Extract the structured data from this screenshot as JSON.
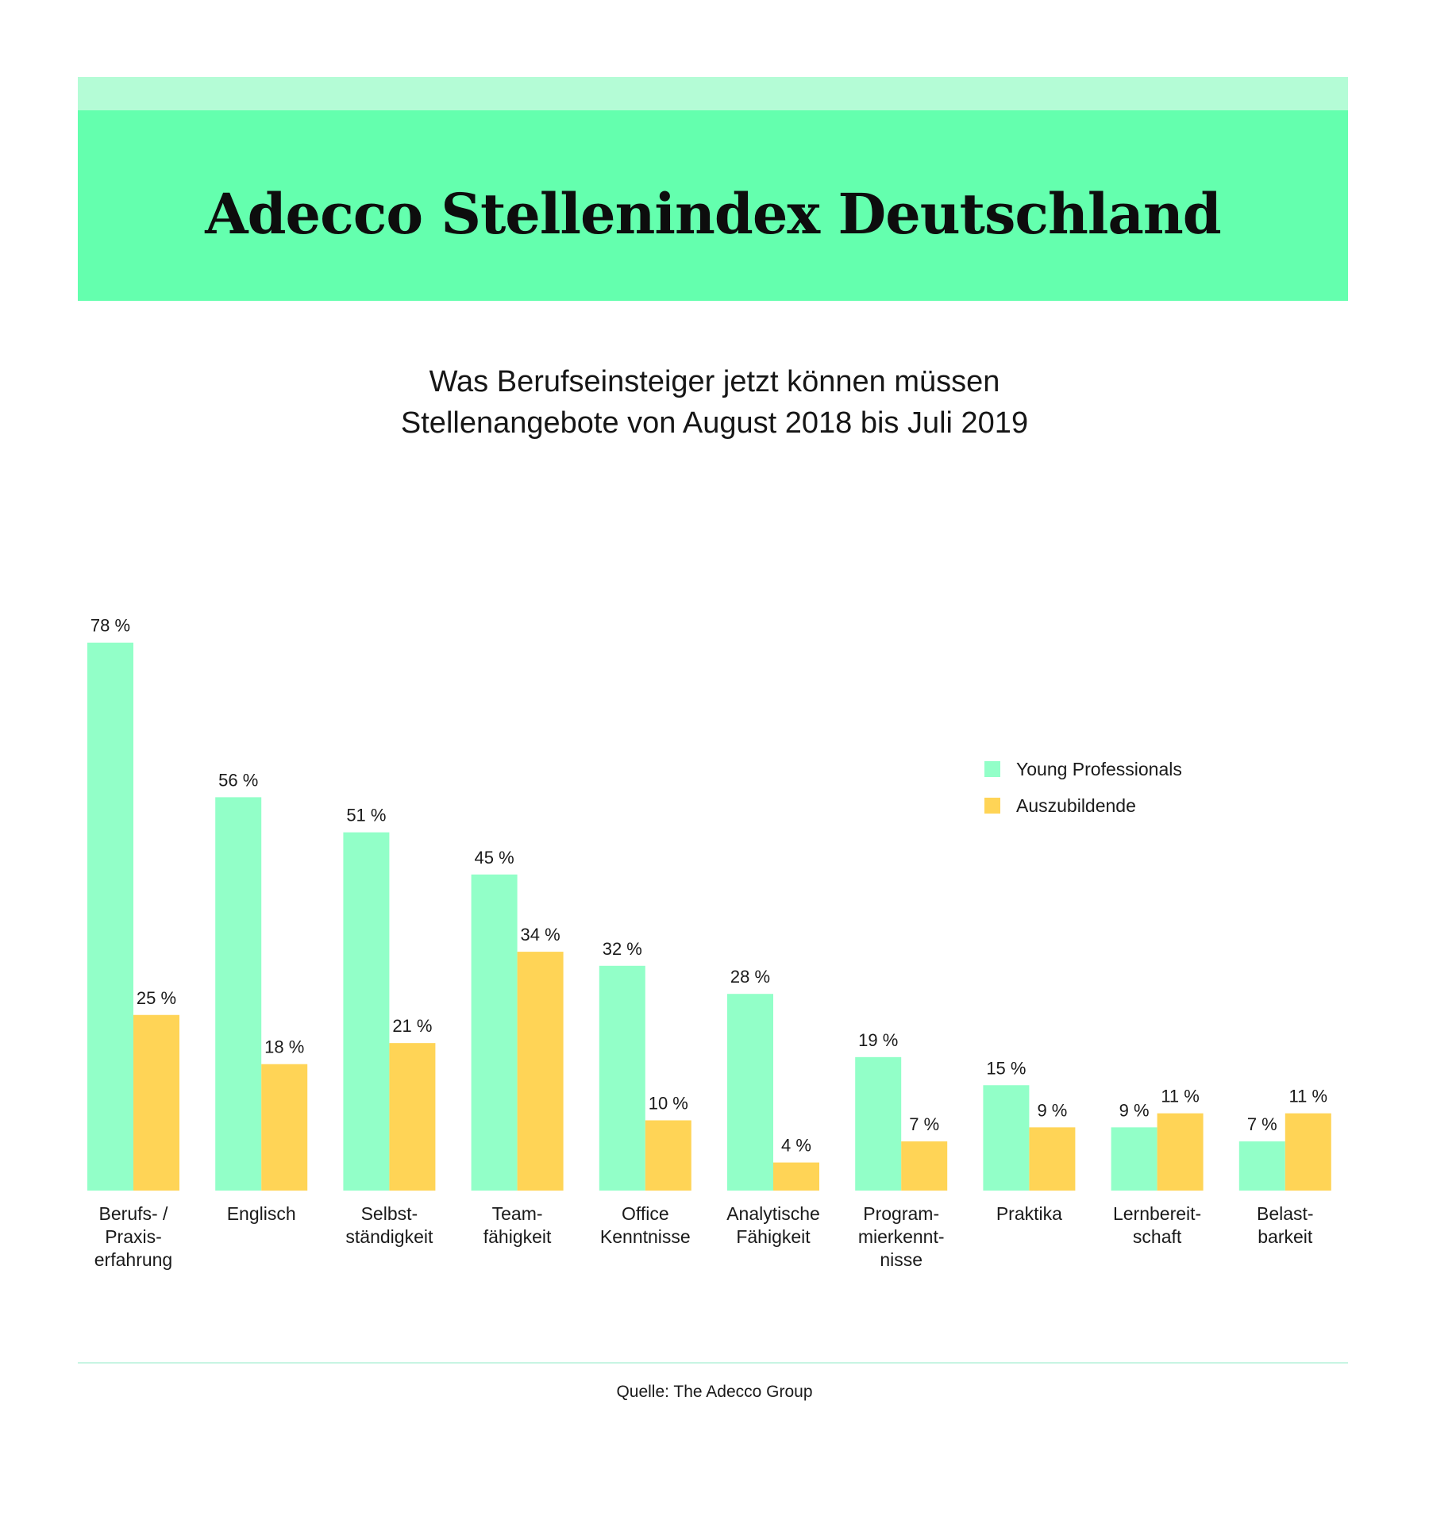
{
  "header": {
    "title": "Adecco Stellenindex Deutschland"
  },
  "subtitle": {
    "line1": "Was Berufseinsteiger jetzt können müssen",
    "line2": "Stellenangebote von August 2018 bis Juli 2019"
  },
  "colors": {
    "banner_light": "#b4fcd6",
    "banner": "#64ffae",
    "young_professionals": "#92ffc8",
    "auszubildende": "#ffd456"
  },
  "legend": {
    "items": [
      {
        "label": "Young Professionals",
        "color": "#92ffc8"
      },
      {
        "label": "Auszubildende",
        "color": "#ffd456"
      }
    ]
  },
  "chart_data": {
    "type": "bar",
    "value_suffix": " %",
    "categories": [
      [
        "Berufs- /",
        "Praxis-",
        "erfahrung"
      ],
      [
        "Englisch"
      ],
      [
        "Selbst-",
        "ständigkeit"
      ],
      [
        "Team-",
        "fähigkeit"
      ],
      [
        "Office",
        "Kenntnisse"
      ],
      [
        "Analytische",
        "Fähigkeit"
      ],
      [
        "Program-",
        "mierkennt-",
        "nisse"
      ],
      [
        "Praktika"
      ],
      [
        "Lernbereit-",
        "schaft"
      ],
      [
        "Belast-",
        "barkeit"
      ]
    ],
    "series": [
      {
        "name": "Young Professionals",
        "values": [
          78,
          56,
          51,
          45,
          32,
          28,
          19,
          15,
          9,
          7
        ]
      },
      {
        "name": "Auszubildende",
        "values": [
          25,
          18,
          21,
          34,
          10,
          4,
          7,
          9,
          11,
          11
        ]
      }
    ],
    "ylim": [
      0,
      80
    ],
    "grid": false,
    "legend_position": "right"
  },
  "footer": {
    "source": "Quelle: The Adecco Group"
  }
}
